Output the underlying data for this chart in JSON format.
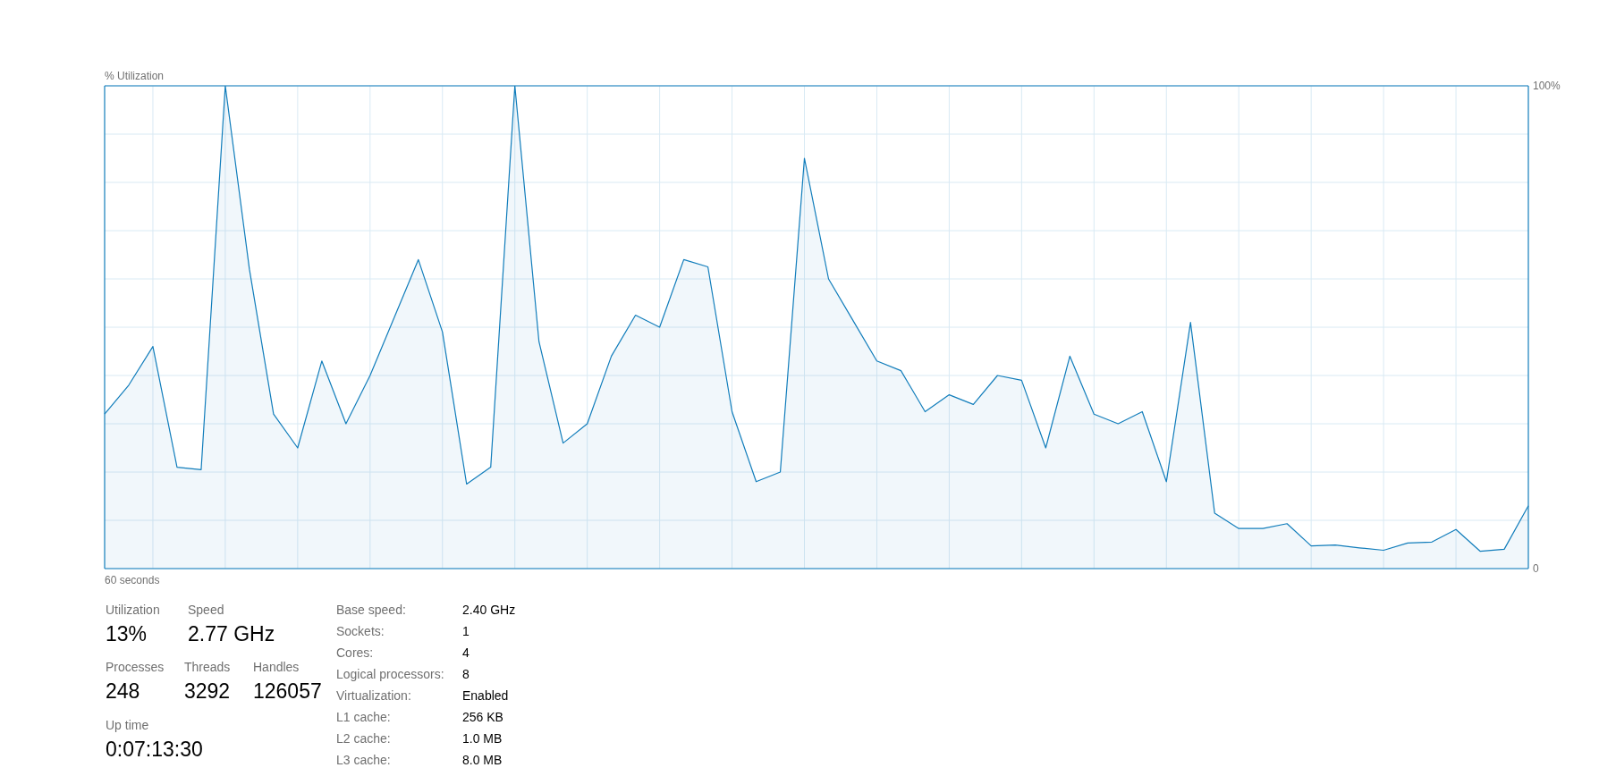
{
  "chart_data": {
    "type": "area",
    "xlabel": "60 seconds",
    "ylabel": "% Utilization",
    "categories": [
      null,
      null,
      null,
      null,
      null,
      null,
      null,
      null,
      null,
      null,
      null,
      null,
      null,
      null,
      null,
      null,
      null,
      null,
      null,
      null,
      null,
      null,
      null,
      null,
      null,
      null,
      null,
      null,
      null,
      null,
      null,
      null,
      null,
      null,
      null,
      null,
      null,
      null,
      null,
      null,
      null,
      null,
      null,
      null,
      null,
      null,
      null,
      null,
      null,
      null,
      null,
      null,
      null,
      null,
      null,
      null,
      null,
      null,
      null,
      null
    ],
    "series": [
      {
        "color": "#117dbb",
        "values": [
          32,
          38,
          46,
          21,
          20.5,
          100,
          62,
          32,
          25,
          43,
          30,
          40,
          52,
          64,
          49,
          17.5,
          21,
          100,
          47,
          26,
          30,
          44,
          52.5,
          50,
          64,
          62.5,
          32.5,
          18,
          20,
          85,
          60,
          51.5,
          43,
          41,
          32.5,
          36,
          34,
          40,
          39,
          25,
          44,
          32,
          30,
          32.5,
          18,
          51,
          11.5,
          8.3,
          8.3,
          9.3,
          4.7,
          4.9,
          4.3,
          3.8,
          5.3,
          5.5,
          8.1,
          3.6,
          4,
          13
        ]
      }
    ],
    "ylim": [
      0,
      100
    ],
    "yticks": [
      {
        "value": 0,
        "label": "0"
      },
      {
        "value": 10,
        "label": null
      },
      {
        "value": 20,
        "label": null
      },
      {
        "value": 30,
        "label": null
      },
      {
        "value": 40,
        "label": null
      },
      {
        "value": 50,
        "label": null
      },
      {
        "value": 60,
        "label": null
      },
      {
        "value": 70,
        "label": null
      },
      {
        "value": 80,
        "label": null
      },
      {
        "value": 90,
        "label": null
      },
      {
        "value": 100,
        "label": "100%"
      }
    ],
    "grid": true,
    "annotations": [
      "Utilization",
      "13%",
      "Speed",
      "2.77 GHz",
      "Processes",
      "248",
      "Threads",
      "3292",
      "Handles",
      "126057",
      "Up time",
      "0:07:13:30",
      "Base speed:",
      "2.40 GHz",
      "Sockets:",
      "1",
      "Cores:",
      "4",
      "Logical processors:",
      "8",
      "Virtualization:",
      "Enabled",
      "L1 cache:",
      "256 KB",
      "L2 cache:",
      "1.0 MB",
      "L3 cache:",
      "8.0 MB"
    ]
  }
}
